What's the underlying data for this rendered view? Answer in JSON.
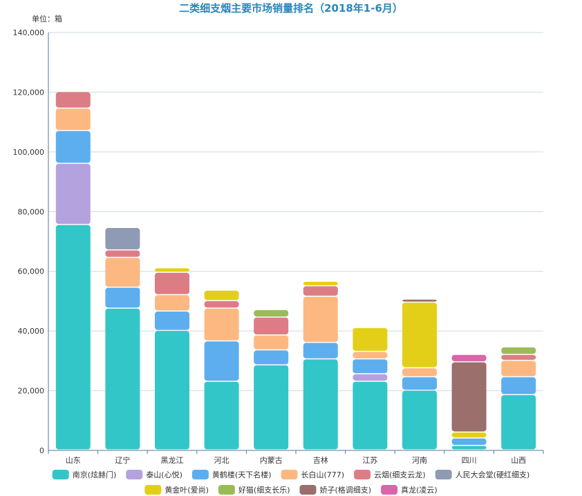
{
  "chart_data": {
    "type": "bar",
    "stacked": true,
    "title": "二类细支烟主要市场销量排名（2018年1-6月）",
    "unit_label": "单位：箱",
    "ylim": [
      0,
      140000
    ],
    "yticks": [
      "0",
      "20,000",
      "40,000",
      "60,000",
      "80,000",
      "100,000",
      "120,000",
      "140,000"
    ],
    "ytick_values": [
      0,
      20000,
      40000,
      60000,
      80000,
      100000,
      120000,
      140000
    ],
    "grid": true,
    "legend_position": "bottom",
    "categories": [
      "山东",
      "辽宁",
      "黑龙江",
      "河北",
      "内蒙古",
      "吉林",
      "江苏",
      "河南",
      "四川",
      "山西"
    ],
    "series": [
      {
        "name": "南京(炫赫门)",
        "color": "#33c6c8",
        "values": [
          75500,
          47500,
          40000,
          23000,
          28500,
          30500,
          23000,
          20000,
          1500,
          18500
        ]
      },
      {
        "name": "泰山(心悦)",
        "color": "#b4a2df",
        "values": [
          20500,
          0,
          0,
          0,
          0,
          0,
          2500,
          0,
          0,
          0
        ]
      },
      {
        "name": "黄鹤楼(天下名楼)",
        "color": "#5caeef",
        "values": [
          11000,
          7000,
          6500,
          13500,
          5000,
          5500,
          5000,
          4500,
          2500,
          6000
        ]
      },
      {
        "name": "长白山(777)",
        "color": "#fdb882",
        "values": [
          7500,
          10000,
          5500,
          11000,
          5000,
          15500,
          2500,
          3000,
          0,
          5500
        ]
      },
      {
        "name": "云烟(细支云龙)",
        "color": "#dc7d86",
        "values": [
          5500,
          2500,
          7500,
          2500,
          6000,
          3500,
          0,
          0,
          0,
          2000
        ]
      },
      {
        "name": "人民大会堂(硬红细支)",
        "color": "#8f9bb4",
        "values": [
          0,
          7500,
          0,
          0,
          0,
          0,
          0,
          0,
          0,
          0
        ]
      },
      {
        "name": "黄金叶(爱尚)",
        "color": "#e3cf17",
        "values": [
          0,
          0,
          1500,
          3500,
          0,
          1500,
          8000,
          22000,
          2000,
          0
        ]
      },
      {
        "name": "好猫(细支长乐)",
        "color": "#9bbb59",
        "values": [
          0,
          0,
          0,
          0,
          2500,
          0,
          0,
          0,
          0,
          2500
        ]
      },
      {
        "name": "娇子(格调细支)",
        "color": "#9a6f6c",
        "values": [
          0,
          0,
          0,
          0,
          0,
          0,
          0,
          1000,
          23500,
          0
        ]
      },
      {
        "name": "真龙(凌云)",
        "color": "#d966a9",
        "values": [
          0,
          0,
          0,
          0,
          0,
          0,
          0,
          0,
          2500,
          0
        ]
      }
    ]
  }
}
